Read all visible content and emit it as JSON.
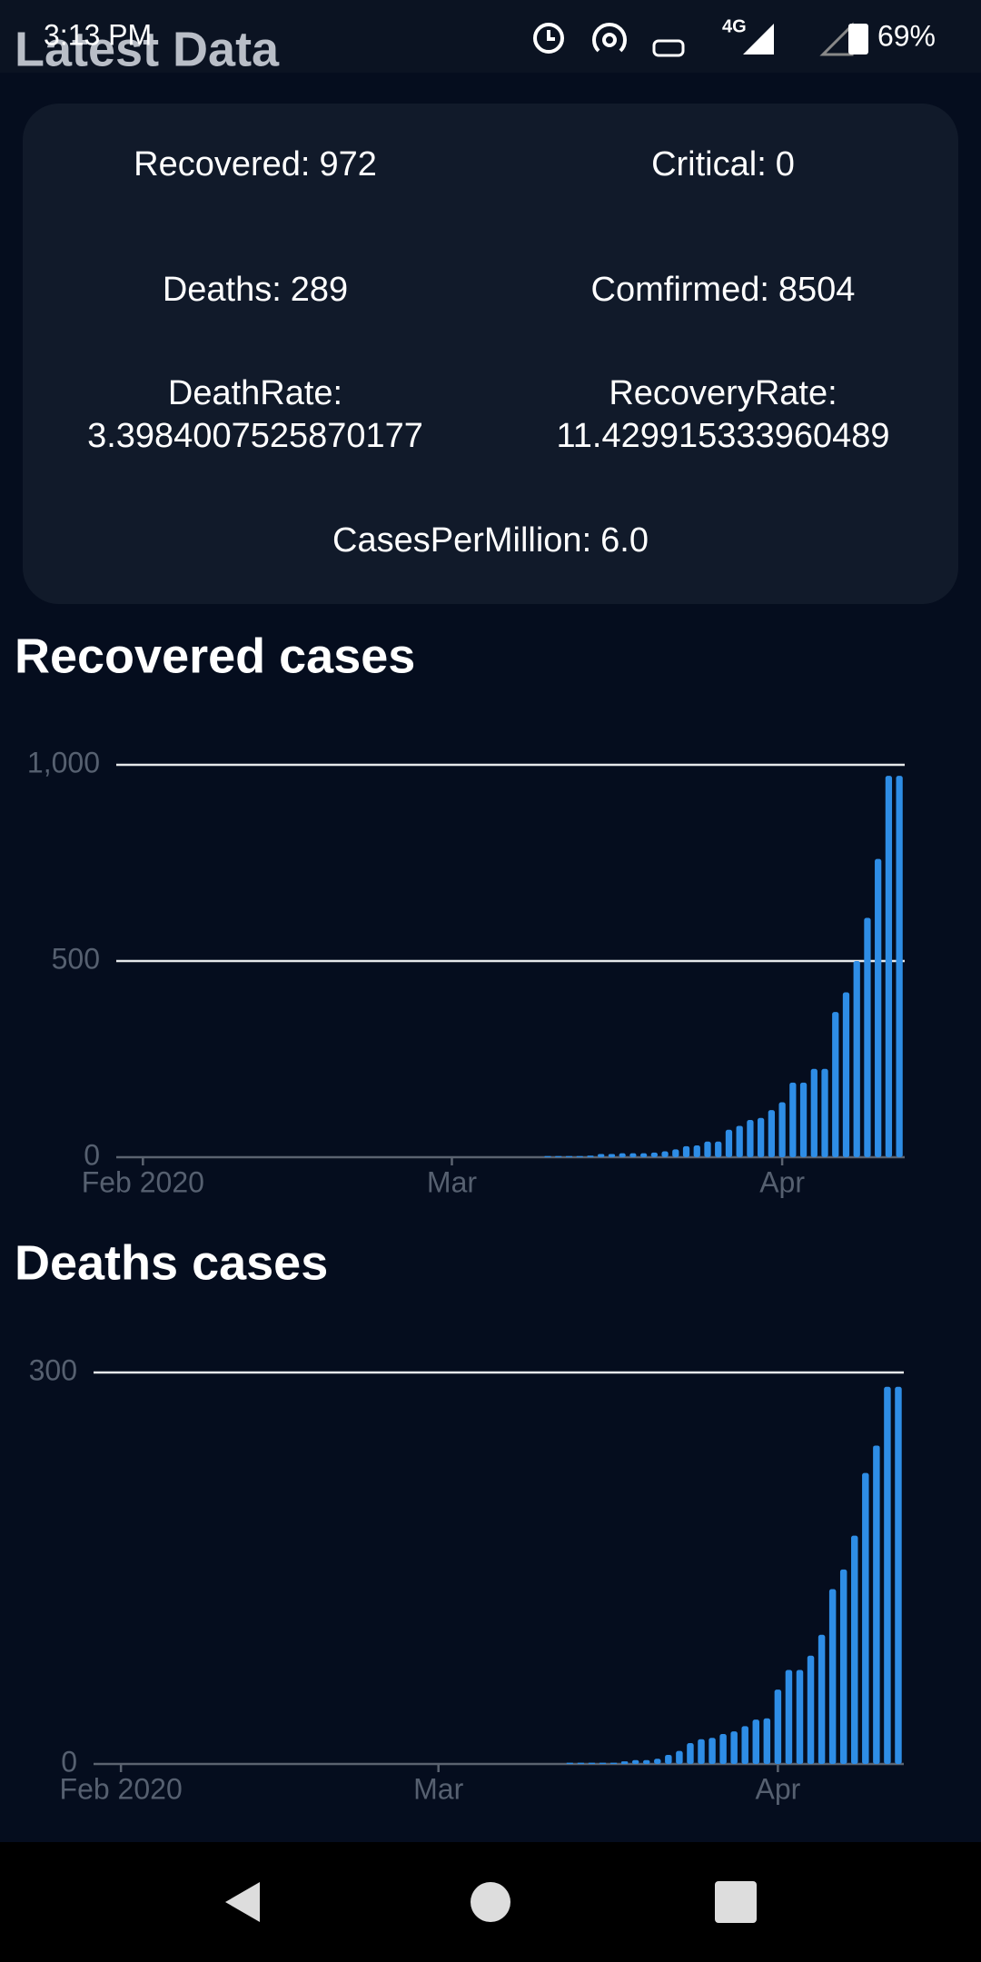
{
  "status_bar": {
    "time": "3:13 PM",
    "network": "4G",
    "battery": "69%"
  },
  "header": {
    "title": "Latest Data"
  },
  "stats": [
    {
      "label": "Recovered:",
      "value": "972"
    },
    {
      "label": "Critical:",
      "value": "0"
    },
    {
      "label": "Deaths:",
      "value": "289"
    },
    {
      "label": "Comfirmed:",
      "value": "8504"
    },
    {
      "label": "DeathRate:",
      "value": "3.3984007525870177"
    },
    {
      "label": "RecoveryRate:",
      "value": "11.429915333960489"
    },
    {
      "label": "CasesPerMillion:",
      "value": "6.0"
    }
  ],
  "chart_data": [
    {
      "type": "bar",
      "title": "Recovered cases",
      "color": "#2e8de6",
      "grid": true,
      "categories": [
        null,
        null,
        null,
        null,
        null,
        null,
        null,
        null,
        null,
        null,
        null,
        null,
        null,
        null,
        null,
        null,
        null,
        null,
        null,
        null,
        null,
        null,
        null,
        null,
        null,
        null,
        null,
        null,
        null,
        null,
        null,
        null,
        null,
        null,
        null,
        null,
        null,
        null,
        null,
        null,
        null,
        null,
        null,
        null,
        null,
        null,
        null,
        null,
        null,
        null,
        null,
        null,
        null,
        null,
        null,
        null,
        null,
        null,
        null,
        null,
        null,
        null,
        null,
        null,
        null,
        null,
        null,
        null,
        null,
        null,
        null,
        null,
        null,
        null
      ],
      "values": [
        0,
        0,
        0,
        0,
        0,
        0,
        0,
        0,
        0,
        0,
        0,
        0,
        0,
        0,
        0,
        0,
        0,
        0,
        0,
        0,
        0,
        0,
        0,
        0,
        0,
        0,
        0,
        0,
        0,
        0,
        0,
        0,
        0,
        0,
        0,
        0,
        0,
        0,
        0,
        0,
        3,
        3,
        3,
        3,
        4,
        8,
        8,
        10,
        10,
        10,
        12,
        15,
        20,
        28,
        30,
        40,
        40,
        70,
        80,
        95,
        100,
        120,
        140,
        190,
        190,
        225,
        225,
        370,
        420,
        500,
        610,
        760,
        972,
        972
      ],
      "ylim": [
        0,
        1000
      ],
      "yticks": [
        0,
        500,
        {
          "value": 1000,
          "label": "1,000"
        }
      ],
      "xticks": [
        {
          "value": 2,
          "label": "Feb 2020"
        },
        {
          "value": 31,
          "label": "Mar"
        },
        {
          "value": 62,
          "label": "Apr"
        }
      ]
    },
    {
      "type": "bar",
      "title": "Deaths cases",
      "color": "#2e8de6",
      "grid": true,
      "categories": [
        null,
        null,
        null,
        null,
        null,
        null,
        null,
        null,
        null,
        null,
        null,
        null,
        null,
        null,
        null,
        null,
        null,
        null,
        null,
        null,
        null,
        null,
        null,
        null,
        null,
        null,
        null,
        null,
        null,
        null,
        null,
        null,
        null,
        null,
        null,
        null,
        null,
        null,
        null,
        null,
        null,
        null,
        null,
        null,
        null,
        null,
        null,
        null,
        null,
        null,
        null,
        null,
        null,
        null,
        null,
        null,
        null,
        null,
        null,
        null,
        null,
        null,
        null,
        null,
        null,
        null,
        null,
        null,
        null,
        null,
        null,
        null,
        null,
        null
      ],
      "values": [
        0,
        0,
        0,
        0,
        0,
        0,
        0,
        0,
        0,
        0,
        0,
        0,
        0,
        0,
        0,
        0,
        0,
        0,
        0,
        0,
        0,
        0,
        0,
        0,
        0,
        0,
        0,
        0,
        0,
        0,
        0,
        0,
        0,
        0,
        0,
        0,
        0,
        0,
        0,
        0,
        0,
        0,
        0,
        1,
        1,
        1,
        1,
        1,
        2,
        3,
        3,
        4,
        7,
        10,
        16,
        19,
        20,
        23,
        25,
        29,
        34,
        35,
        57,
        72,
        72,
        83,
        99,
        134,
        149,
        175,
        223,
        244,
        289,
        289
      ],
      "ylim": [
        0,
        300
      ],
      "yticks": [
        0,
        300
      ],
      "xticks": [
        {
          "value": 2,
          "label": "Feb 2020"
        },
        {
          "value": 31,
          "label": "Mar"
        },
        {
          "value": 62,
          "label": "Apr"
        }
      ]
    }
  ]
}
